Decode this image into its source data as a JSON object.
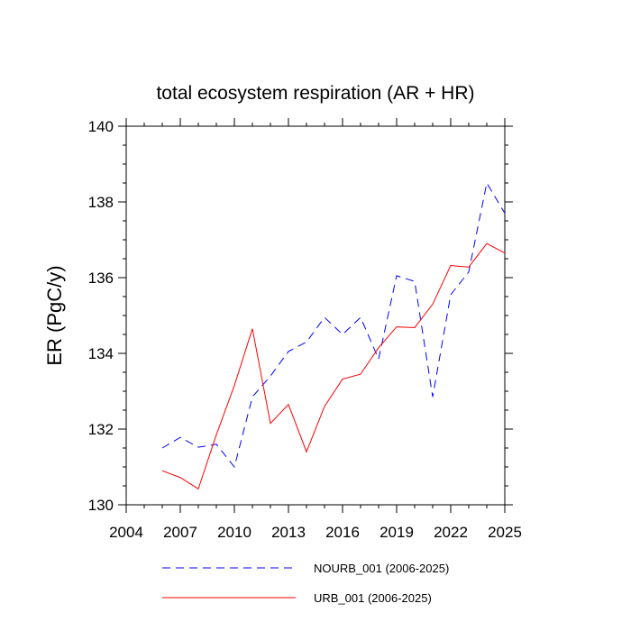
{
  "chart_data": {
    "type": "line",
    "title": "total ecosystem respiration (AR + HR)",
    "xlabel": "",
    "ylabel": "ER  (PgC/y)",
    "xlim": [
      2004,
      2025
    ],
    "ylim": [
      130,
      140
    ],
    "xticks": [
      2004,
      2007,
      2010,
      2013,
      2016,
      2019,
      2022,
      2025
    ],
    "xtick_labels": [
      "2004",
      "2007",
      "2010",
      "2013",
      "2016",
      "2019",
      "2022",
      "2025"
    ],
    "yticks": [
      130,
      132,
      134,
      136,
      138,
      140
    ],
    "ytick_labels": [
      "130",
      "132",
      "134",
      "136",
      "138",
      "140"
    ],
    "grid": false,
    "legend_position": "bottom",
    "x": [
      2006,
      2007,
      2008,
      2009,
      2010,
      2011,
      2012,
      2013,
      2014,
      2015,
      2016,
      2017,
      2018,
      2019,
      2020,
      2021,
      2022,
      2023,
      2024,
      2025
    ],
    "series": [
      {
        "name": "NOURB_001 (2006-2025)",
        "color": "#0000ff",
        "dash": "dashed",
        "values": [
          131.5,
          131.78,
          131.52,
          131.6,
          131.0,
          132.85,
          133.4,
          134.05,
          134.3,
          134.95,
          134.5,
          134.95,
          133.85,
          136.05,
          135.9,
          132.85,
          135.55,
          136.15,
          138.5,
          137.7
        ]
      },
      {
        "name": "URB_001 (2006-2025)",
        "color": "#ff0000",
        "dash": "solid",
        "values": [
          130.9,
          130.72,
          130.42,
          131.85,
          133.15,
          134.65,
          132.15,
          132.65,
          131.4,
          132.6,
          133.32,
          133.45,
          134.15,
          134.7,
          134.68,
          135.3,
          136.32,
          136.28,
          136.9,
          136.65
        ]
      }
    ]
  }
}
